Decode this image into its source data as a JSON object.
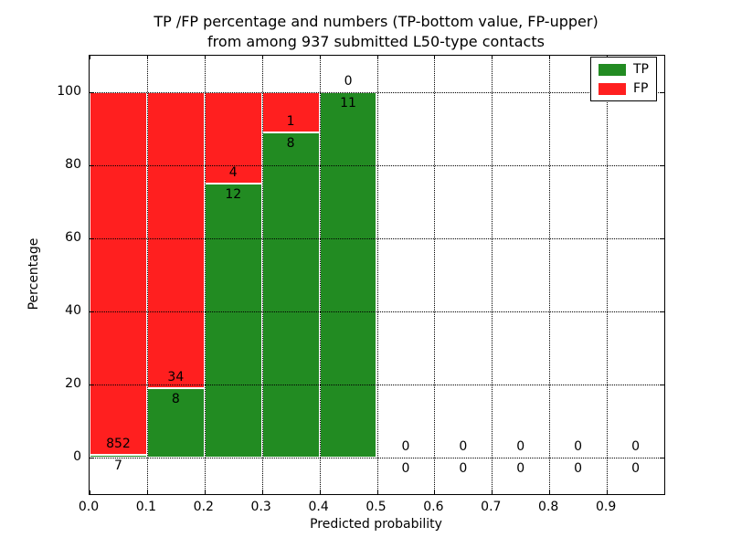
{
  "chart_data": {
    "type": "bar",
    "stacked": true,
    "title_line1": "TP /FP percentage and numbers (TP-bottom value, FP-upper)",
    "title_line2": "from among 937 submitted L50-type contacts",
    "xlabel": "Predicted probability",
    "ylabel": "Percentage",
    "xlim": [
      0,
      1
    ],
    "ylim": [
      -10,
      110
    ],
    "grid": true,
    "x_ticks": [
      {
        "value": 0.0,
        "label": "0.0"
      },
      {
        "value": 0.1,
        "label": "0.1"
      },
      {
        "value": 0.2,
        "label": "0.2"
      },
      {
        "value": 0.3,
        "label": "0.3"
      },
      {
        "value": 0.4,
        "label": "0.4"
      },
      {
        "value": 0.5,
        "label": "0.5"
      },
      {
        "value": 0.6,
        "label": "0.6"
      },
      {
        "value": 0.7,
        "label": "0.7"
      },
      {
        "value": 0.8,
        "label": "0.8"
      },
      {
        "value": 0.9,
        "label": "0.9"
      }
    ],
    "y_ticks": [
      {
        "value": 0,
        "label": "0"
      },
      {
        "value": 20,
        "label": "20"
      },
      {
        "value": 40,
        "label": "40"
      },
      {
        "value": 60,
        "label": "60"
      },
      {
        "value": 80,
        "label": "80"
      },
      {
        "value": 100,
        "label": "100"
      }
    ],
    "legend": {
      "position": "upper-right",
      "entries": [
        {
          "label": "TP",
          "color": "#228b22"
        },
        {
          "label": "FP",
          "color": "#ff1f1f"
        }
      ]
    },
    "bins": [
      {
        "x0": 0.0,
        "x1": 0.1,
        "tp": 7,
        "fp": 852
      },
      {
        "x0": 0.1,
        "x1": 0.2,
        "tp": 8,
        "fp": 34
      },
      {
        "x0": 0.2,
        "x1": 0.3,
        "tp": 12,
        "fp": 4
      },
      {
        "x0": 0.3,
        "x1": 0.4,
        "tp": 8,
        "fp": 1
      },
      {
        "x0": 0.4,
        "x1": 0.5,
        "tp": 11,
        "fp": 0
      },
      {
        "x0": 0.5,
        "x1": 0.6,
        "tp": 0,
        "fp": 0
      },
      {
        "x0": 0.6,
        "x1": 0.7,
        "tp": 0,
        "fp": 0
      },
      {
        "x0": 0.7,
        "x1": 0.8,
        "tp": 0,
        "fp": 0
      },
      {
        "x0": 0.8,
        "x1": 0.9,
        "tp": 0,
        "fp": 0
      },
      {
        "x0": 0.9,
        "x1": 1.0,
        "tp": 0,
        "fp": 0
      }
    ],
    "colors": {
      "tp": "#228b22",
      "fp": "#ff1f1f",
      "grid": "#000000",
      "axis": "#000000",
      "bar_edge": "#ffffff",
      "background": "#ffffff"
    }
  }
}
